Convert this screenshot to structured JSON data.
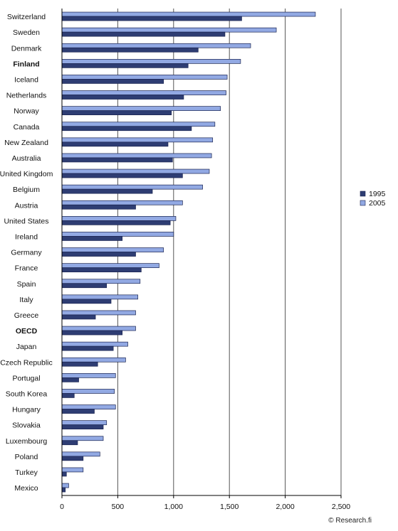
{
  "chart_data": {
    "type": "bar",
    "orientation": "horizontal",
    "categories": [
      "Switzerland",
      "Sweden",
      "Denmark",
      "Finland",
      "Iceland",
      "Netherlands",
      "Norway",
      "Canada",
      "New Zealand",
      "Australia",
      "United Kingdom",
      "Belgium",
      "Austria",
      "United States",
      "Ireland",
      "Germany",
      "France",
      "Spain",
      "Italy",
      "Greece",
      "OECD",
      "Japan",
      "Czech Republic",
      "Portugal",
      "South Korea",
      "Hungary",
      "Slovakia",
      "Luxembourg",
      "Poland",
      "Turkey",
      "Mexico"
    ],
    "bold_categories": [
      "Finland",
      "OECD"
    ],
    "series": [
      {
        "name": "1995",
        "color": "#2e3d73",
        "values": [
          1610,
          1460,
          1220,
          1130,
          910,
          1090,
          980,
          1160,
          950,
          990,
          1080,
          810,
          660,
          970,
          540,
          660,
          710,
          400,
          440,
          300,
          540,
          460,
          320,
          150,
          110,
          290,
          370,
          140,
          190,
          40,
          30
        ]
      },
      {
        "name": "2005",
        "color": "#92a9e3",
        "values": [
          2270,
          1920,
          1690,
          1600,
          1480,
          1470,
          1420,
          1370,
          1350,
          1340,
          1320,
          1260,
          1080,
          1020,
          1000,
          910,
          870,
          700,
          680,
          660,
          660,
          590,
          570,
          480,
          470,
          480,
          400,
          370,
          340,
          190,
          60
        ]
      }
    ],
    "x_ticks": [
      "0",
      "500",
      "1,000",
      "1,500",
      "2,000",
      "2,500"
    ],
    "xlim": [
      0,
      2500
    ],
    "grid": "vertical",
    "legend_position": "right",
    "credit": "© Research.fi"
  }
}
